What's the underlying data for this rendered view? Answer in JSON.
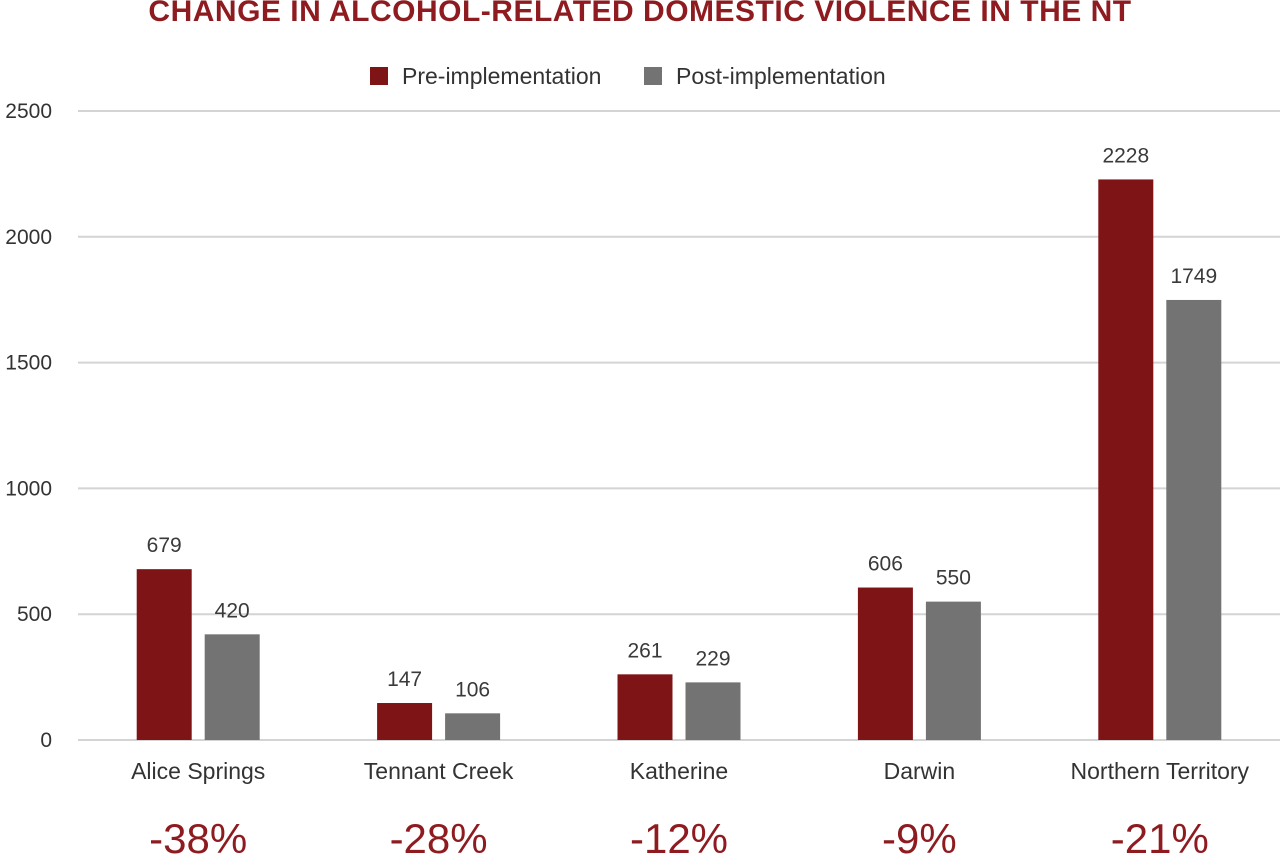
{
  "chart_data": {
    "type": "bar",
    "title": "CHANGE IN ALCOHOL-RELATED DOMESTIC VIOLENCE IN THE NT",
    "categories": [
      "Alice Springs",
      "Tennant Creek",
      "Katherine",
      "Darwin",
      "Northern Territory"
    ],
    "series": [
      {
        "name": "Pre-implementation",
        "values": [
          679,
          147,
          261,
          606,
          2228
        ],
        "color": "#7f1416"
      },
      {
        "name": "Post-implementation",
        "values": [
          420,
          106,
          229,
          550,
          1749
        ],
        "color": "#737373"
      }
    ],
    "percent_changes": [
      "-38%",
      "-28%",
      "-12%",
      "-9%",
      "-21%"
    ],
    "ylim": [
      0,
      2500
    ],
    "yticks": [
      0,
      500,
      1000,
      1500,
      2000,
      2500
    ],
    "grid": true,
    "legend_position": "top-center",
    "accent_color": "#8e1b1f"
  }
}
